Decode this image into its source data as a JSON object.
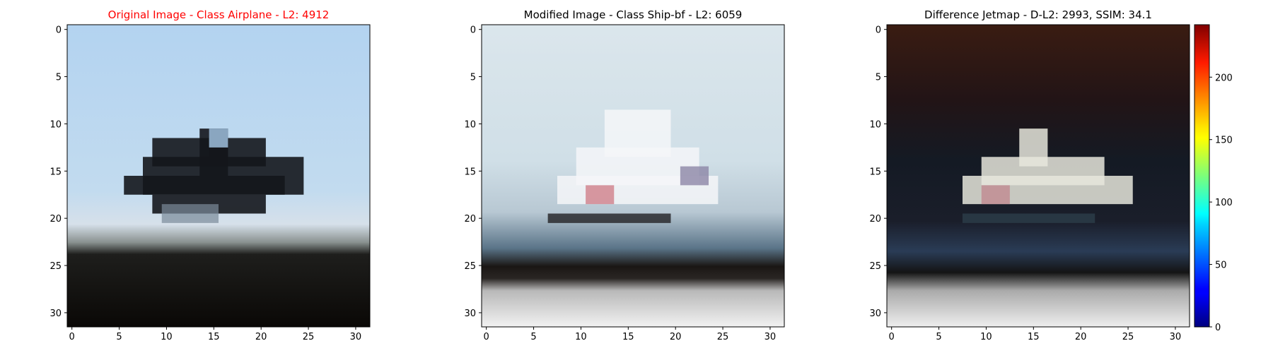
{
  "chart_data": [
    {
      "type": "heatmap",
      "title": "Original Image - Class Airplane - L2: 4912",
      "title_color": "#ff0000",
      "xticks": [
        0,
        5,
        10,
        15,
        20,
        25,
        30
      ],
      "yticks": [
        0,
        5,
        10,
        15,
        20,
        25,
        30
      ],
      "xlim": [
        -0.5,
        31.5
      ],
      "ylim": [
        31.5,
        -0.5
      ],
      "grid": false
    },
    {
      "type": "heatmap",
      "title": "Modified Image - Class Ship-bf - L2: 6059",
      "title_color": "#000000",
      "xticks": [
        0,
        5,
        10,
        15,
        20,
        25,
        30
      ],
      "yticks": [
        0,
        5,
        10,
        15,
        20,
        25,
        30
      ],
      "xlim": [
        -0.5,
        31.5
      ],
      "ylim": [
        31.5,
        -0.5
      ],
      "grid": false
    },
    {
      "type": "heatmap",
      "title": "Difference Jetmap - D-L2: 2993, SSIM: 34.1",
      "title_color": "#000000",
      "xticks": [
        0,
        5,
        10,
        15,
        20,
        25,
        30
      ],
      "yticks": [
        0,
        5,
        10,
        15,
        20,
        25,
        30
      ],
      "xlim": [
        -0.5,
        31.5
      ],
      "ylim": [
        31.5,
        -0.5
      ],
      "grid": false,
      "colorbar": {
        "colormap": "jet",
        "ticks": [
          0,
          50,
          100,
          150,
          200
        ],
        "range": [
          0,
          242
        ]
      }
    }
  ]
}
